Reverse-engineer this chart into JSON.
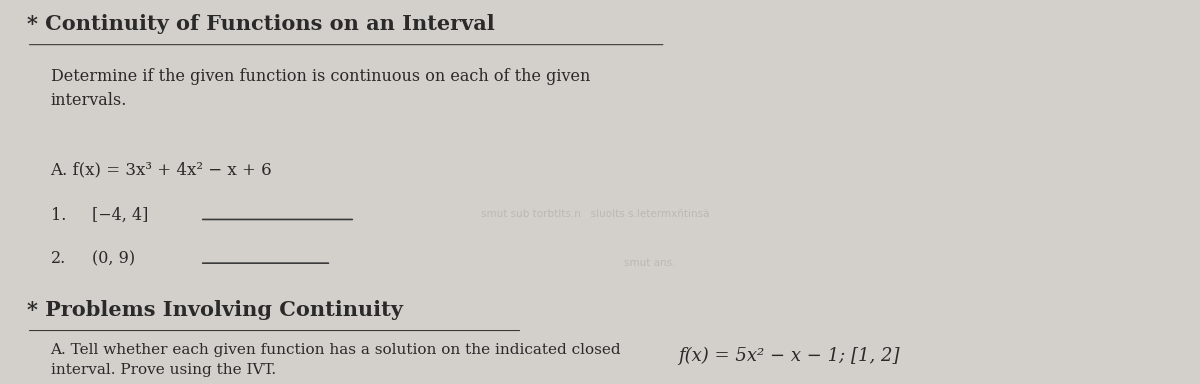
{
  "background_color": "#d3d0cb",
  "title_star": "* Continuity of Functions on an Interval",
  "title_fontsize": 15,
  "subtitle": "Determine if the given function is continuous on each of the given\nintervals.",
  "subtitle_fontsize": 11.5,
  "function_A_expr": "A. f(x) = 3x³ + 4x² − x + 6",
  "function_A_fontsize": 12,
  "item1_label": "1.",
  "item1_interval": "[−4, 4]",
  "item2_label": "2.",
  "item2_interval": "(0, 9)",
  "items_fontsize": 11.5,
  "watermark_text1": "smut sub torbtlts.n   sluolts s.letermxñtinsä",
  "watermark_text2": "smut ans.",
  "section2_star": "* Problems Involving Continuity",
  "section2_fontsize": 15,
  "section2_sub": "A. Tell whether each given function has a solution on the indicated closed\ninterval. Prove using the IVT.",
  "section2_sub_fontsize": 11,
  "section2_expr": "f(x) = 5x² − x − 1; [1, 2]",
  "section2_expr_fontsize": 13,
  "line_color": "#3a3a3a",
  "text_color": "#2a2a2a"
}
